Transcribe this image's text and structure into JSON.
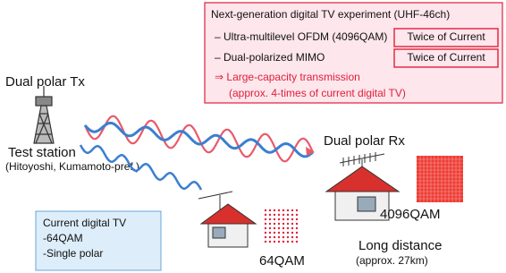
{
  "experiment_box": {
    "title": "Next-generation digital TV experiment (UHF-46ch)",
    "items": [
      {
        "label": "– Ultra-multilevel OFDM (4096QAM)",
        "badge": "Twice of Current"
      },
      {
        "label": "– Dual-polarized MIMO",
        "badge": "Twice of Current"
      }
    ],
    "result": "⇒ Large-capacity transmission",
    "result_note": "(approx. 4-times of current digital TV)"
  },
  "transmitter": {
    "label": "Dual polar Tx",
    "station": "Test station",
    "location": "(Hitoyoshi, Kumamoto-pref.)"
  },
  "receiver": {
    "label": "Dual polar Rx",
    "modulation": "4096QAM",
    "distance": "Long distance",
    "distance_note": "(approx. 27km)"
  },
  "current": {
    "lines": [
      "Current digital TV",
      "-64QAM",
      "-Single polar"
    ],
    "modulation": "64QAM"
  }
}
